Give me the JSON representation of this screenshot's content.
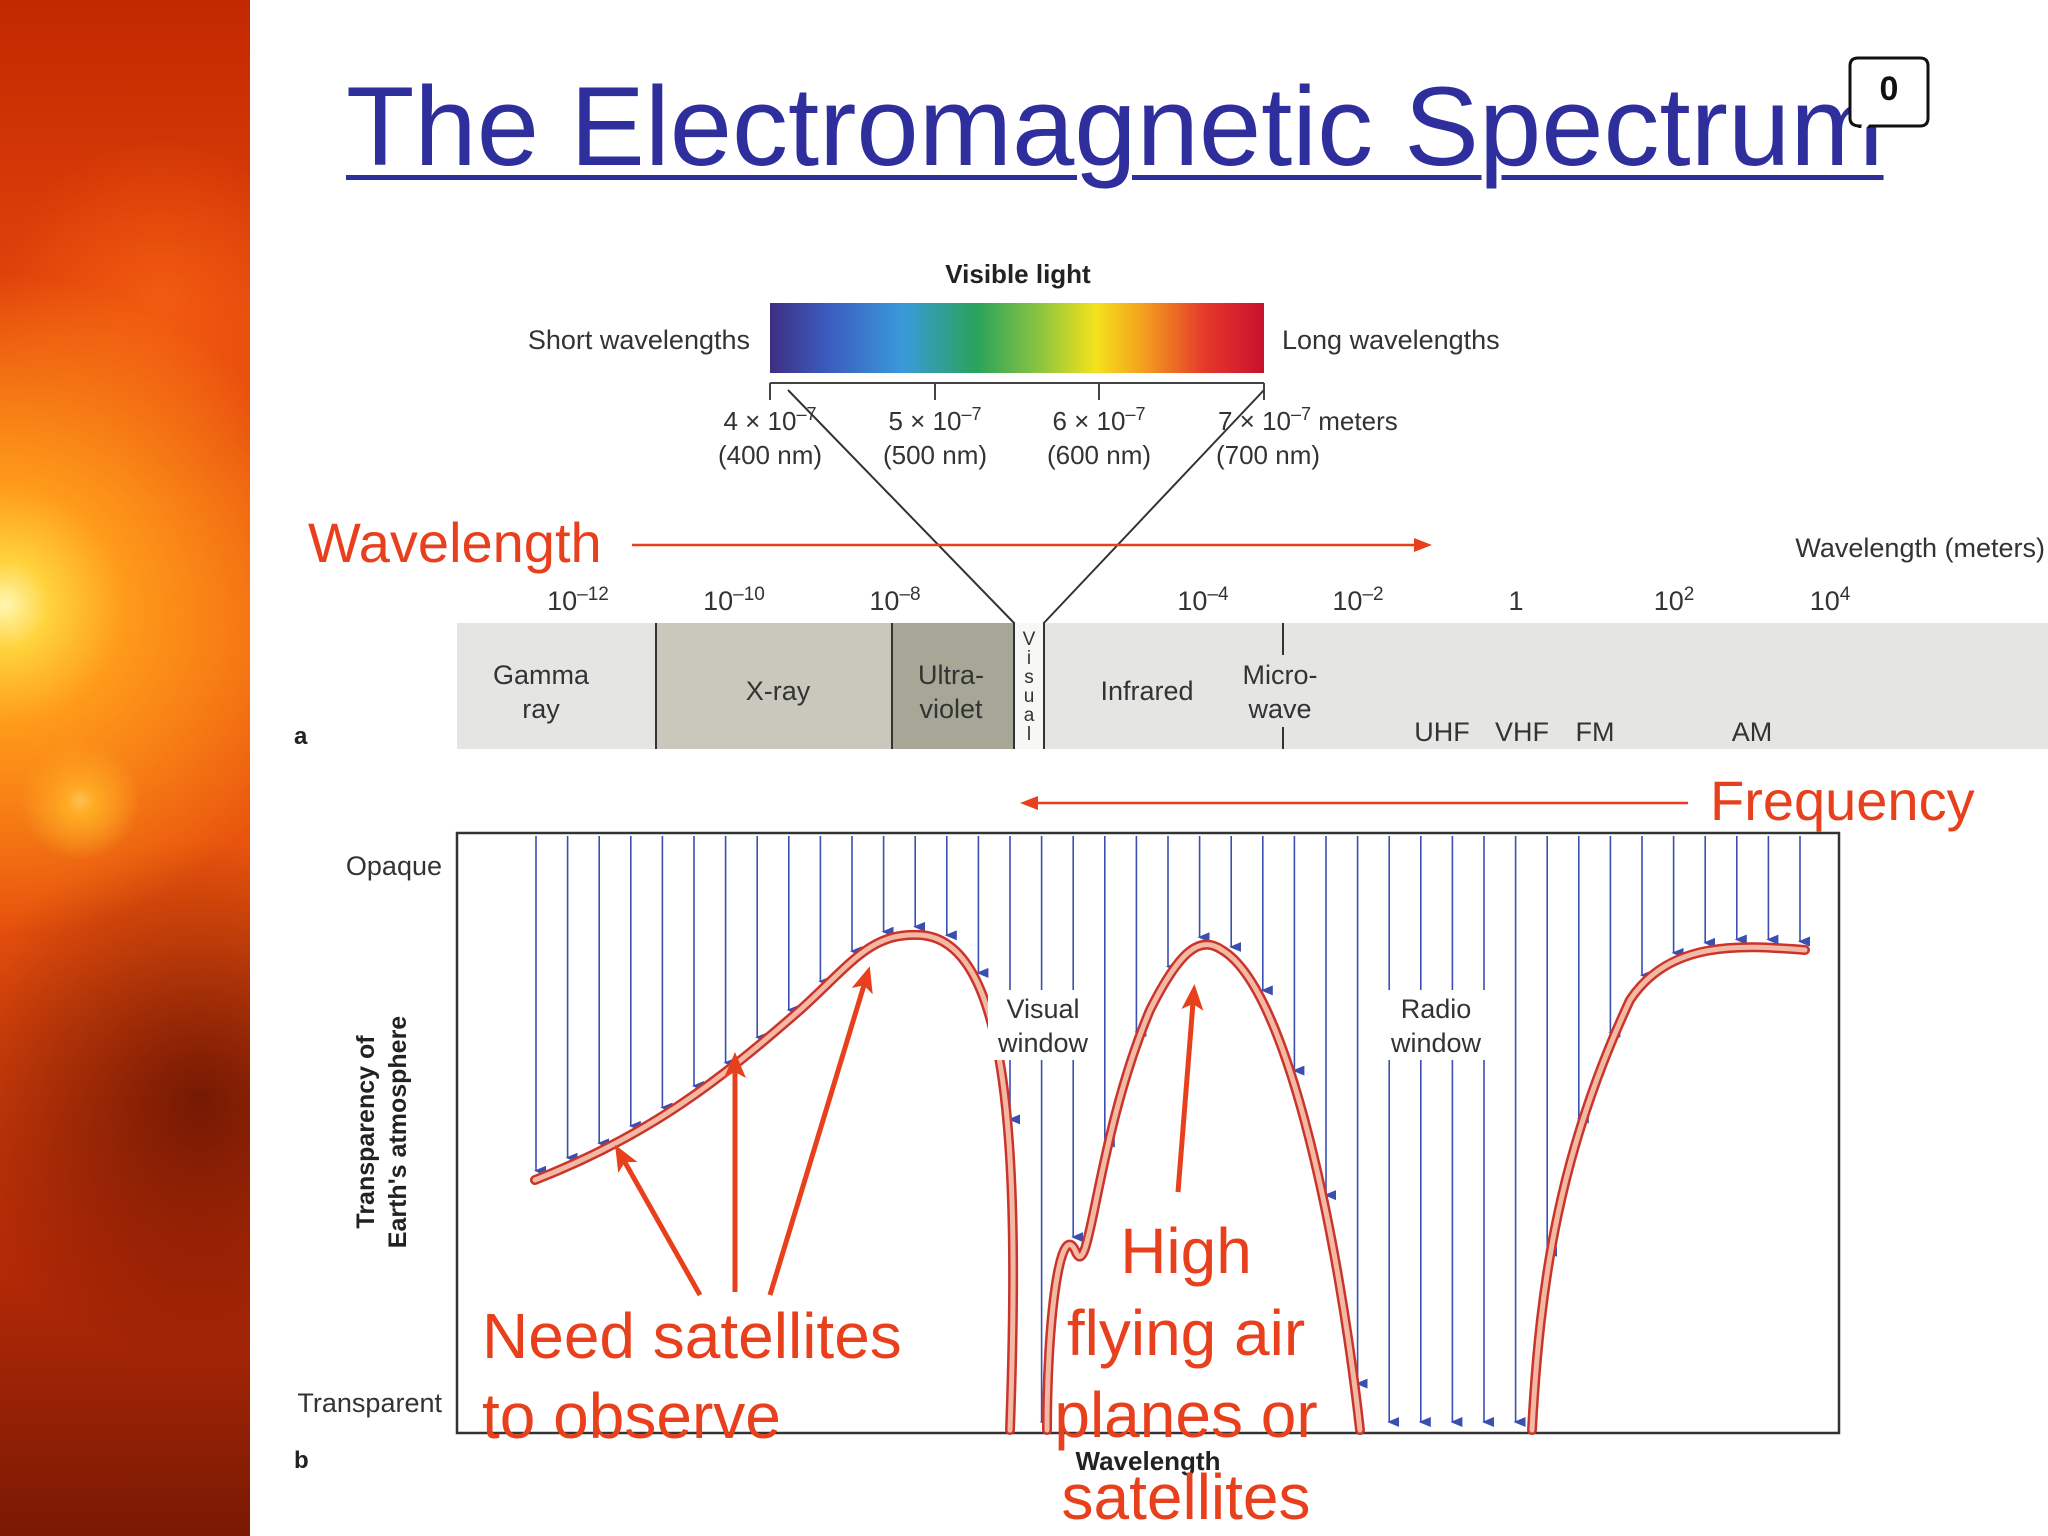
{
  "slide": {
    "title": "The Electromagnetic Spectrum",
    "comment_count": "0"
  },
  "panel_a": {
    "panel_label": "a",
    "visible_light_title": "Visible light",
    "short_label": "Short wavelengths",
    "long_label": "Long wavelengths",
    "visible_ticks": [
      {
        "line1": "4 × 10",
        "exp": "–7",
        "unit": "",
        "line2": "(400 nm)"
      },
      {
        "line1": "5 × 10",
        "exp": "–7",
        "unit": "",
        "line2": "(500 nm)"
      },
      {
        "line1": "6 × 10",
        "exp": "–7",
        "unit": "",
        "line2": "(600 nm)"
      },
      {
        "line1": "7 × 10",
        "exp": "–7",
        "unit": " meters",
        "line2": "(700 nm)"
      }
    ],
    "wavelength_axis_label": "Wavelength (meters)",
    "wavelength_ticks": [
      {
        "base": "10",
        "exp": "–12"
      },
      {
        "base": "10",
        "exp": "–10"
      },
      {
        "base": "10",
        "exp": "–8"
      },
      {
        "base": "10",
        "exp": "–4"
      },
      {
        "base": "10",
        "exp": "–2"
      },
      {
        "base": "1",
        "exp": ""
      },
      {
        "base": "10",
        "exp": "2"
      },
      {
        "base": "10",
        "exp": "4"
      }
    ],
    "bands": [
      {
        "line1": "Gamma",
        "line2": "ray"
      },
      {
        "line1": "X-ray",
        "line2": ""
      },
      {
        "line1": "Ultra-",
        "line2": "violet"
      },
      {
        "line1": "Infrared",
        "line2": ""
      },
      {
        "line1": "Micro-",
        "line2": "wave"
      }
    ],
    "visual_vertical": [
      "V",
      "i",
      "s",
      "u",
      "a",
      "l"
    ],
    "radio_bands": [
      "UHF",
      "VHF",
      "FM",
      "AM"
    ],
    "spectrum_colors": [
      "#3d2e82",
      "#3b5dbf",
      "#3a9ad9",
      "#2aa35a",
      "#8ec63f",
      "#f5e21b",
      "#f39c1f",
      "#e5392b",
      "#c8102e"
    ]
  },
  "annotations": {
    "wavelength": "Wavelength",
    "frequency": "Frequency",
    "need_satellites_line1": "Need satellites",
    "need_satellites_line2": "to observe",
    "high_flying_line1": "High",
    "high_flying_line2": "flying air",
    "high_flying_line3": "planes or",
    "high_flying_line4": "satellites",
    "arrow_color": "#e8401c"
  },
  "panel_b": {
    "panel_label": "b",
    "y_top": "Opaque",
    "y_bottom": "Transparent",
    "y_axis_line1": "Transparency of",
    "y_axis_line2": "Earth's atmosphere",
    "x_axis": "Wavelength",
    "visual_window_line1": "Visual",
    "visual_window_line2": "window",
    "radio_window_line1": "Radio",
    "radio_window_line2": "window",
    "arrow_color": "#3a4fb0",
    "curve_color": "#d9544a"
  }
}
